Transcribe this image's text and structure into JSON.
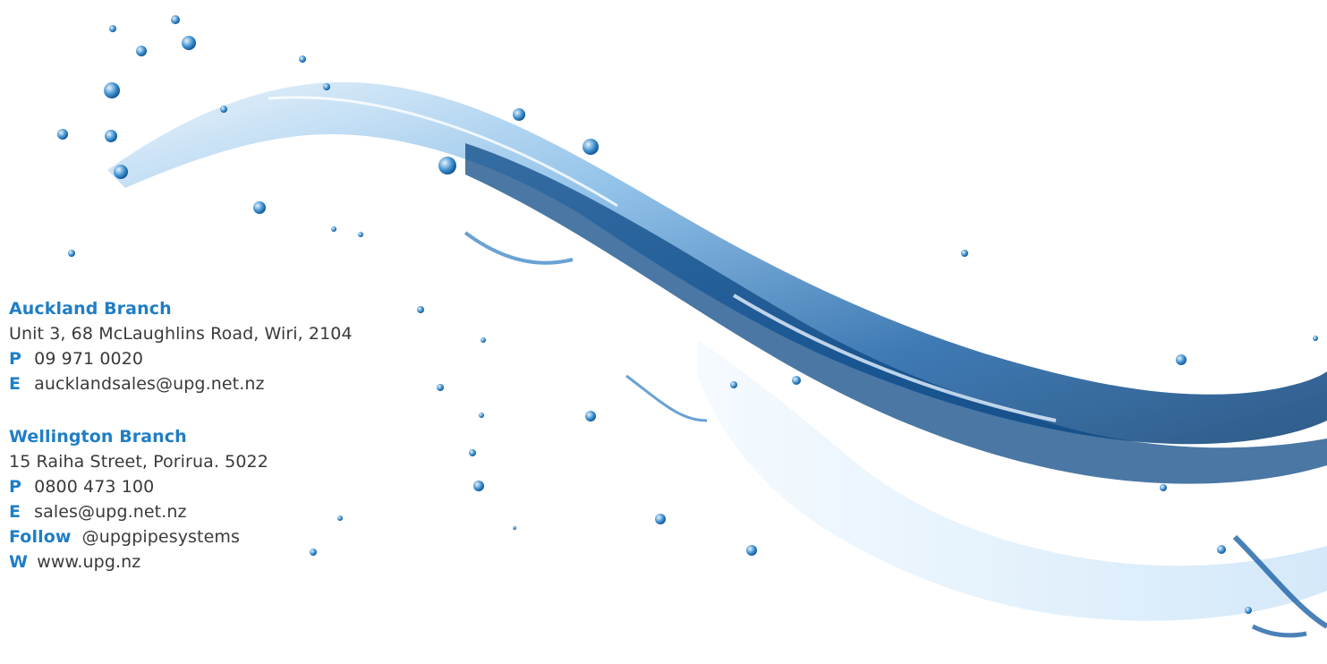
{
  "auckland": {
    "heading": "Auckland Branch",
    "address": "Unit 3, 68 McLaughlins Road, Wiri, 2104",
    "phone_key": "P",
    "phone": "09 971 0020",
    "email_key": "E",
    "email": "aucklandsales@upg.net.nz"
  },
  "wellington": {
    "heading": "Wellington Branch",
    "address": "15 Raiha Street, Porirua. 5022",
    "phone_key": "P",
    "phone": "0800 473 100",
    "email_key": "E",
    "email": "sales@upg.net.nz",
    "follow_key": "Follow",
    "follow_handle": "@upgpipesystems",
    "web_key": "W",
    "web": "www.upg.nz"
  },
  "colors": {
    "accent": "#1f7ec6",
    "text": "#3a3a3a",
    "water_dark": "#0f4f8a",
    "water_mid": "#3c8fd0",
    "water_light": "#cfe6f8"
  }
}
